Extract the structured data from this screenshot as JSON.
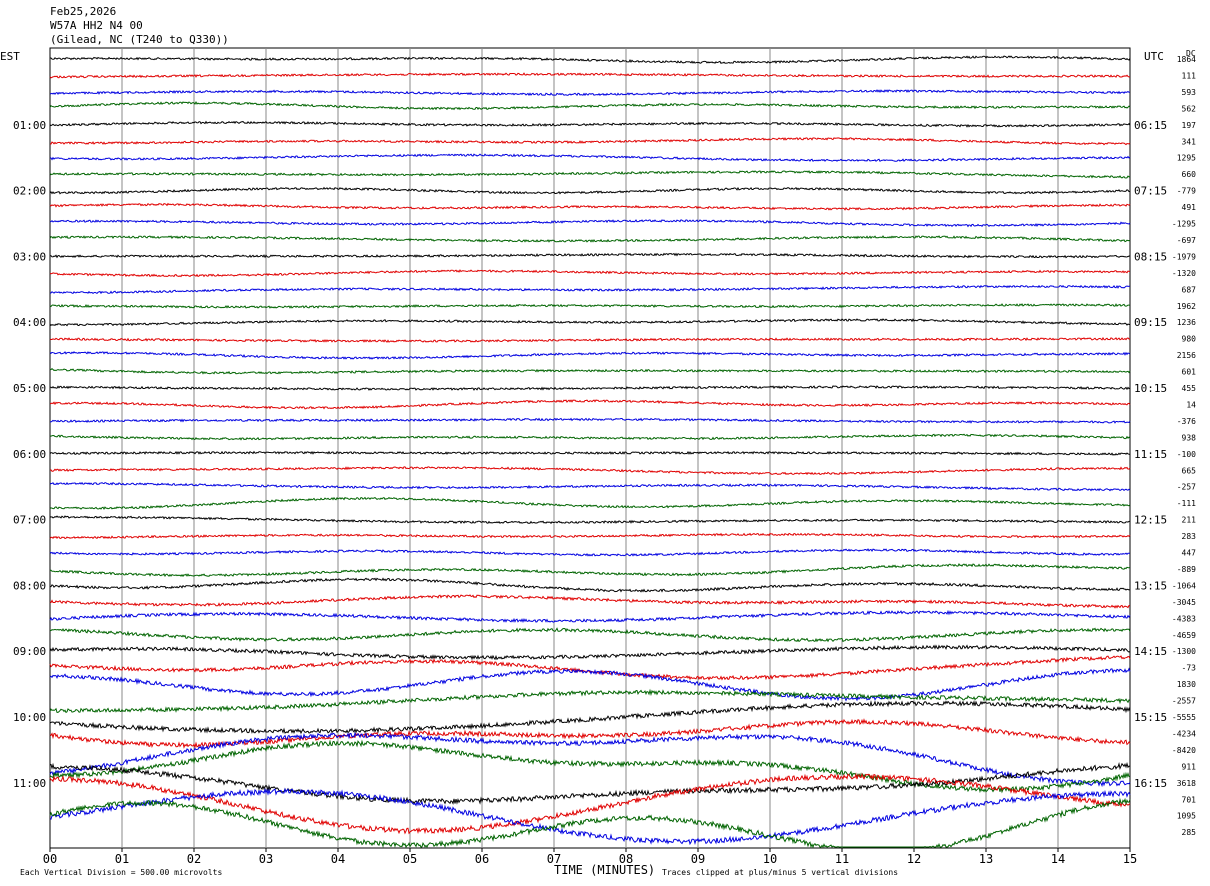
{
  "header": {
    "date": "Feb25,2026",
    "station": "W57A HH2 N4 00",
    "location": "(Gilead, NC (T240 to Q330))"
  },
  "chart_data": {
    "type": "line",
    "title": "",
    "xlabel": "TIME (MINUTES)",
    "ylabel": "",
    "xlim": [
      0,
      15
    ],
    "x_ticks": [
      "00",
      "01",
      "02",
      "03",
      "04",
      "05",
      "06",
      "07",
      "08",
      "09",
      "10",
      "11",
      "12",
      "13",
      "14",
      "15"
    ],
    "left_axis_label": "EST",
    "right_axis_label": "UTC",
    "dc_label": "DC",
    "est_hour_labels": [
      "01:00",
      "02:00",
      "03:00",
      "04:00",
      "05:00",
      "06:00",
      "07:00",
      "08:00",
      "09:00",
      "10:00",
      "11:00"
    ],
    "utc_hour_labels": [
      "06:15",
      "07:15",
      "08:15",
      "09:15",
      "10:15",
      "11:15",
      "12:15",
      "13:15",
      "14:15",
      "15:15",
      "16:15"
    ],
    "trace_color_cycle": [
      "#000000",
      "#e00000",
      "#0000e0",
      "#006400"
    ],
    "dc_offsets": [
      "1864",
      "111",
      "593",
      "562",
      "197",
      "341",
      "1295",
      "660",
      "-779",
      "491",
      "-1295",
      "-697",
      "-1979",
      "-1320",
      "687",
      "1962",
      "1236",
      "980",
      "2156",
      "601",
      "455",
      "14",
      "-376",
      "938",
      "-100",
      "665",
      "-257",
      "-111",
      "211",
      "283",
      "447",
      "-889",
      "-1064",
      "-3045",
      "-4383",
      "-4659",
      "-1300",
      "-73",
      "1830",
      "-2557",
      "-5555",
      "-4234",
      "-8420",
      "911",
      "3618",
      "701",
      "1095",
      "285"
    ],
    "grid": true,
    "footer_left": "Each Vertical Division =  500.00 microvolts",
    "footer_right": "Traces clipped at plus/minus 5 vertical divisions"
  }
}
